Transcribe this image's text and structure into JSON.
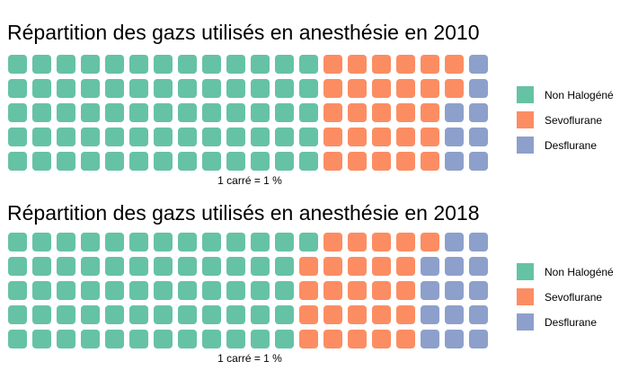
{
  "chart_data": [
    {
      "type": "waffle",
      "title": "Répartition des gazs utilisés en anesthésie en 2010",
      "caption": "1 carré = 1 %",
      "rows": 5,
      "categories": [
        "Non Halogéné",
        "Sevoflurane",
        "Desflurane"
      ],
      "values": [
        65,
        27,
        8
      ],
      "colors": [
        "#66c2a5",
        "#fc8d62",
        "#8da0cb"
      ]
    },
    {
      "type": "waffle",
      "title": "Répartition des gazs utilisés en anesthésie en 2018",
      "caption": "1 carré = 1 %",
      "rows": 5,
      "categories": [
        "Non Halogéné",
        "Sevoflurane",
        "Desflurane"
      ],
      "values": [
        61,
        25,
        14
      ],
      "colors": [
        "#66c2a5",
        "#fc8d62",
        "#8da0cb"
      ]
    }
  ]
}
